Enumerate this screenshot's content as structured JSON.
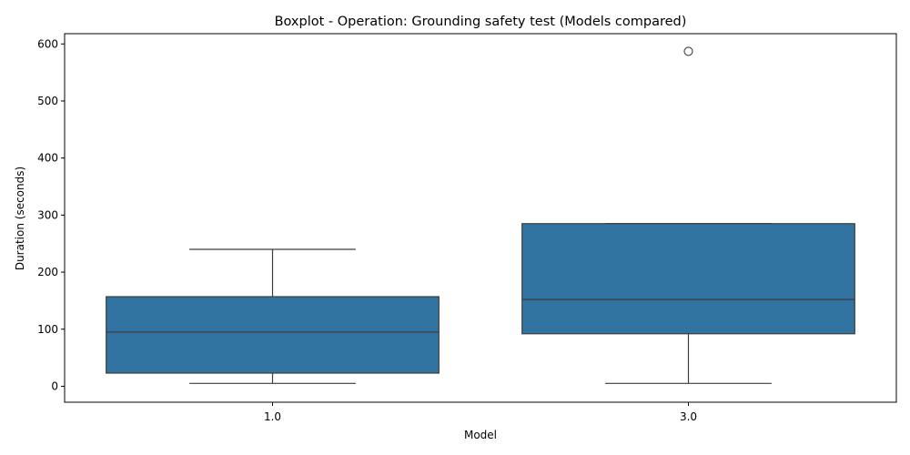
{
  "chart_data": {
    "type": "boxplot",
    "title": "Boxplot - Operation: Grounding safety test (Models compared)",
    "xlabel": "Model",
    "ylabel": "Duration (seconds)",
    "ylim": [
      -28,
      618
    ],
    "yticks": [
      0,
      100,
      200,
      300,
      400,
      500,
      600
    ],
    "grid": false,
    "box_color": "#3274a1",
    "line_color": "#3d3d3d",
    "categories": [
      "1.0",
      "3.0"
    ],
    "boxes": [
      {
        "category": "1.0",
        "whisker_low": 5,
        "q1": 23,
        "median": 95,
        "q3": 157,
        "whisker_high": 240,
        "outliers": []
      },
      {
        "category": "3.0",
        "whisker_low": 5,
        "q1": 92,
        "median": 152,
        "q3": 285,
        "whisker_high": 285,
        "outliers": [
          587
        ]
      }
    ]
  }
}
